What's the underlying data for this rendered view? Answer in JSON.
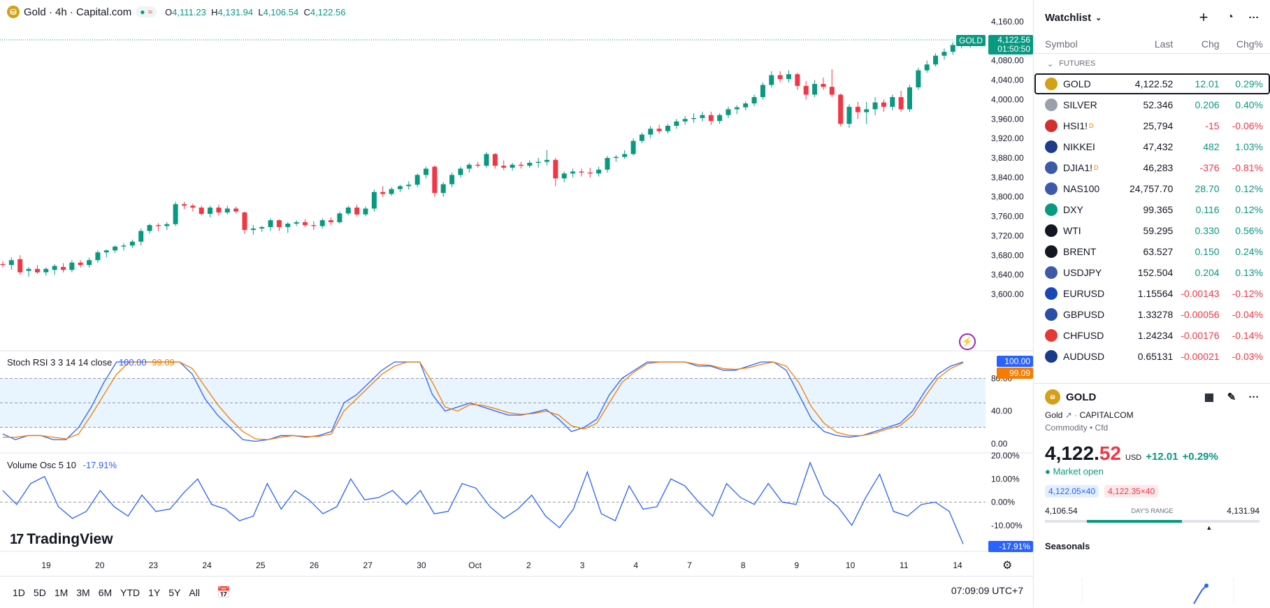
{
  "header": {
    "symbol_title": "Gold · 4h · Capital.com",
    "ohlc": {
      "o_label": "O",
      "o": "4,111.23",
      "h_label": "H",
      "h": "4,131.94",
      "l_label": "L",
      "l": "4,106.54",
      "c_label": "C",
      "c": "4,122.56"
    }
  },
  "price_axis": {
    "ticks": [
      "4,160.00",
      "4,120.00",
      "4,080.00",
      "4,040.00",
      "4,000.00",
      "3,960.00",
      "3,920.00",
      "3,880.00",
      "3,840.00",
      "3,800.00",
      "3,760.00",
      "3,720.00",
      "3,680.00",
      "3,640.00",
      "3,600.00"
    ],
    "last_symbol": "GOLD",
    "last_price": "4,122.56",
    "countdown": "01:50:50"
  },
  "time_axis": {
    "labels": [
      "19",
      "20",
      "23",
      "24",
      "25",
      "26",
      "27",
      "30",
      "Oct",
      "2",
      "3",
      "4",
      "7",
      "8",
      "9",
      "10",
      "11",
      "14"
    ]
  },
  "rsi_pane": {
    "label": "Stoch RSI 3 3 14 14 close",
    "k_value": "100.00",
    "d_value": "99.09",
    "ticks": [
      "80.00",
      "40.00",
      "0.00"
    ],
    "k_color": "#2962ff",
    "d_color": "#f57c00"
  },
  "vol_pane": {
    "label": "Volume Osc 5 10",
    "value": "-17.91%",
    "ticks": [
      "20.00%",
      "10.00%",
      "0.00%",
      "-10.00%"
    ],
    "tag": "-17.91%"
  },
  "branding": {
    "logo_text": "TradingView"
  },
  "bottom_bar": {
    "ranges": [
      "1D",
      "5D",
      "1M",
      "3M",
      "6M",
      "YTD",
      "1Y",
      "5Y",
      "All"
    ],
    "clock": "07:09:09 UTC+7"
  },
  "watchlist": {
    "title": "Watchlist",
    "columns": {
      "symbol": "Symbol",
      "last": "Last",
      "chg": "Chg",
      "pct": "Chg%"
    },
    "section": "FUTURES",
    "rows": [
      {
        "sym": "GOLD",
        "last": "4,122.52",
        "chg": "12.01",
        "pct": "0.29%",
        "dir": "pos",
        "icon_color": "#d4a017",
        "icon_name": "gold-icon"
      },
      {
        "sym": "SILVER",
        "last": "52.346",
        "chg": "0.206",
        "pct": "0.40%",
        "dir": "pos",
        "icon_color": "#9aa0aa",
        "icon_name": "silver-icon"
      },
      {
        "sym": "HSI1!",
        "last": "25,794",
        "chg": "-15",
        "pct": "-0.06%",
        "dir": "neg",
        "icon_color": "#d32f2f",
        "icon_name": "hsi-icon",
        "sup": "D"
      },
      {
        "sym": "NIKKEI",
        "last": "47,432",
        "chg": "482",
        "pct": "1.03%",
        "dir": "pos",
        "icon_color": "#1e3a8a",
        "icon_name": "nikkei-icon"
      },
      {
        "sym": "DJIA1!",
        "last": "46,283",
        "chg": "-376",
        "pct": "-0.81%",
        "dir": "neg",
        "icon_color": "#3c5aa8",
        "icon_name": "us-flag-icon",
        "sup": "D"
      },
      {
        "sym": "NAS100",
        "last": "24,757.70",
        "chg": "28.70",
        "pct": "0.12%",
        "dir": "pos",
        "icon_color": "#3c5aa8",
        "icon_name": "us-flag-icon"
      },
      {
        "sym": "DXY",
        "last": "99.365",
        "chg": "0.116",
        "pct": "0.12%",
        "dir": "pos",
        "icon_color": "#089981",
        "icon_name": "dollar-icon"
      },
      {
        "sym": "WTI",
        "last": "59.295",
        "chg": "0.330",
        "pct": "0.56%",
        "dir": "pos",
        "icon_color": "#131722",
        "icon_name": "oil-drop-icon"
      },
      {
        "sym": "BRENT",
        "last": "63.527",
        "chg": "0.150",
        "pct": "0.24%",
        "dir": "pos",
        "icon_color": "#131722",
        "icon_name": "oil-drop-icon"
      },
      {
        "sym": "USDJPY",
        "last": "152.504",
        "chg": "0.204",
        "pct": "0.13%",
        "dir": "pos",
        "icon_color": "#3c5aa8",
        "icon_name": "usdjpy-flag-icon"
      },
      {
        "sym": "EURUSD",
        "last": "1.15564",
        "chg": "-0.00143",
        "pct": "-0.12%",
        "dir": "neg",
        "icon_color": "#1a47b8",
        "icon_name": "eurusd-flag-icon"
      },
      {
        "sym": "GBPUSD",
        "last": "1.33278",
        "chg": "-0.00056",
        "pct": "-0.04%",
        "dir": "neg",
        "icon_color": "#2b4ea8",
        "icon_name": "gbpusd-flag-icon"
      },
      {
        "sym": "CHFUSD",
        "last": "1.24234",
        "chg": "-0.00176",
        "pct": "-0.14%",
        "dir": "neg",
        "icon_color": "#e53935",
        "icon_name": "chfusd-flag-icon"
      },
      {
        "sym": "AUDUSD",
        "last": "0.65131",
        "chg": "-0.00021",
        "pct": "-0.03%",
        "dir": "neg",
        "icon_color": "#1a3a8a",
        "icon_name": "audusd-flag-icon"
      }
    ]
  },
  "detail": {
    "symbol": "GOLD",
    "name": "Gold",
    "exchange": "CAPITALCOM",
    "category": "Commodity • Cfd",
    "price_main": "4,122.",
    "price_frac": "52",
    "currency": "USD",
    "change": "+12.01",
    "change_pct": "+0.29%",
    "market_status": "Market open",
    "bid": "4,122.05×40",
    "ask": "4,122.35×40",
    "day_low": "4,106.54",
    "day_high": "4,131.94",
    "range_label": "DAY'S RANGE",
    "day_range_position": 0.9,
    "seasonals": "Seasonals"
  },
  "chart_data": {
    "type": "candlestick",
    "interval": "4h",
    "ylim": [
      3590,
      4170
    ],
    "ohlc": [
      [
        3662,
        3668,
        3655,
        3660
      ],
      [
        3660,
        3676,
        3650,
        3670
      ],
      [
        3672,
        3680,
        3640,
        3645
      ],
      [
        3648,
        3656,
        3636,
        3652
      ],
      [
        3652,
        3660,
        3642,
        3645
      ],
      [
        3645,
        3655,
        3638,
        3652
      ],
      [
        3650,
        3662,
        3640,
        3658
      ],
      [
        3656,
        3664,
        3645,
        3650
      ],
      [
        3650,
        3670,
        3645,
        3665
      ],
      [
        3665,
        3670,
        3655,
        3660
      ],
      [
        3660,
        3675,
        3655,
        3670
      ],
      [
        3670,
        3690,
        3665,
        3686
      ],
      [
        3686,
        3692,
        3676,
        3690
      ],
      [
        3690,
        3700,
        3685,
        3698
      ],
      [
        3698,
        3705,
        3690,
        3700
      ],
      [
        3700,
        3712,
        3695,
        3708
      ],
      [
        3708,
        3735,
        3700,
        3730
      ],
      [
        3730,
        3745,
        3725,
        3742
      ],
      [
        3742,
        3746,
        3730,
        3740
      ],
      [
        3740,
        3748,
        3732,
        3744
      ],
      [
        3744,
        3790,
        3740,
        3785
      ],
      [
        3785,
        3790,
        3775,
        3782
      ],
      [
        3782,
        3786,
        3770,
        3778
      ],
      [
        3778,
        3782,
        3762,
        3765
      ],
      [
        3765,
        3782,
        3758,
        3778
      ],
      [
        3778,
        3784,
        3762,
        3768
      ],
      [
        3768,
        3782,
        3764,
        3776
      ],
      [
        3776,
        3780,
        3766,
        3770
      ],
      [
        3768,
        3770,
        3724,
        3732
      ],
      [
        3732,
        3742,
        3722,
        3735
      ],
      [
        3735,
        3740,
        3728,
        3738
      ],
      [
        3738,
        3756,
        3730,
        3752
      ],
      [
        3752,
        3754,
        3730,
        3738
      ],
      [
        3738,
        3748,
        3726,
        3745
      ],
      [
        3745,
        3752,
        3740,
        3748
      ],
      [
        3748,
        3754,
        3738,
        3742
      ],
      [
        3742,
        3750,
        3732,
        3740
      ],
      [
        3740,
        3756,
        3735,
        3752
      ],
      [
        3752,
        3758,
        3742,
        3748
      ],
      [
        3748,
        3770,
        3745,
        3766
      ],
      [
        3766,
        3782,
        3762,
        3778
      ],
      [
        3778,
        3784,
        3760,
        3764
      ],
      [
        3764,
        3780,
        3760,
        3776
      ],
      [
        3776,
        3815,
        3770,
        3810
      ],
      [
        3810,
        3822,
        3800,
        3806
      ],
      [
        3806,
        3820,
        3802,
        3816
      ],
      [
        3816,
        3825,
        3810,
        3822
      ],
      [
        3822,
        3832,
        3815,
        3825
      ],
      [
        3825,
        3848,
        3820,
        3845
      ],
      [
        3845,
        3862,
        3838,
        3858
      ],
      [
        3862,
        3865,
        3800,
        3808
      ],
      [
        3808,
        3830,
        3800,
        3826
      ],
      [
        3826,
        3850,
        3820,
        3845
      ],
      [
        3845,
        3862,
        3840,
        3858
      ],
      [
        3858,
        3870,
        3850,
        3866
      ],
      [
        3866,
        3872,
        3860,
        3864
      ],
      [
        3864,
        3892,
        3860,
        3888
      ],
      [
        3888,
        3890,
        3858,
        3864
      ],
      [
        3864,
        3875,
        3855,
        3860
      ],
      [
        3860,
        3870,
        3854,
        3866
      ],
      [
        3866,
        3872,
        3858,
        3864
      ],
      [
        3864,
        3875,
        3860,
        3870
      ],
      [
        3870,
        3880,
        3860,
        3872
      ],
      [
        3872,
        3896,
        3865,
        3876
      ],
      [
        3876,
        3880,
        3822,
        3838
      ],
      [
        3838,
        3852,
        3830,
        3848
      ],
      [
        3848,
        3858,
        3840,
        3852
      ],
      [
        3852,
        3858,
        3842,
        3850
      ],
      [
        3850,
        3860,
        3840,
        3848
      ],
      [
        3848,
        3862,
        3842,
        3856
      ],
      [
        3856,
        3884,
        3850,
        3880
      ],
      [
        3880,
        3886,
        3872,
        3882
      ],
      [
        3882,
        3896,
        3878,
        3888
      ],
      [
        3888,
        3920,
        3885,
        3915
      ],
      [
        3915,
        3932,
        3910,
        3928
      ],
      [
        3928,
        3946,
        3920,
        3940
      ],
      [
        3940,
        3948,
        3930,
        3935
      ],
      [
        3935,
        3950,
        3930,
        3946
      ],
      [
        3946,
        3960,
        3940,
        3955
      ],
      [
        3955,
        3966,
        3948,
        3960
      ],
      [
        3960,
        3972,
        3952,
        3962
      ],
      [
        3962,
        3975,
        3955,
        3968
      ],
      [
        3968,
        3975,
        3948,
        3956
      ],
      [
        3956,
        3972,
        3950,
        3968
      ],
      [
        3968,
        3985,
        3962,
        3980
      ],
      [
        3980,
        3988,
        3970,
        3984
      ],
      [
        3984,
        3996,
        3978,
        3992
      ],
      [
        3992,
        4010,
        3986,
        4005
      ],
      [
        4005,
        4035,
        4000,
        4030
      ],
      [
        4030,
        4058,
        4025,
        4050
      ],
      [
        4050,
        4058,
        4035,
        4042
      ],
      [
        4042,
        4060,
        4035,
        4052
      ],
      [
        4052,
        4055,
        4020,
        4028
      ],
      [
        4028,
        4038,
        4000,
        4010
      ],
      [
        4010,
        4040,
        4005,
        4032
      ],
      [
        4032,
        4045,
        4020,
        4026
      ],
      [
        4026,
        4062,
        4005,
        4010
      ],
      [
        4010,
        4012,
        3945,
        3950
      ],
      [
        3950,
        3990,
        3942,
        3985
      ],
      [
        3985,
        3995,
        3960,
        3974
      ],
      [
        3974,
        3995,
        3950,
        3980
      ],
      [
        3980,
        4005,
        3968,
        3994
      ],
      [
        3994,
        4000,
        3975,
        3985
      ],
      [
        3985,
        4010,
        3978,
        4005
      ],
      [
        4005,
        4018,
        3975,
        3980
      ],
      [
        3980,
        4030,
        3975,
        4025
      ],
      [
        4025,
        4065,
        4020,
        4060
      ],
      [
        4060,
        4080,
        4055,
        4072
      ],
      [
        4072,
        4095,
        4068,
        4090
      ],
      [
        4090,
        4105,
        4082,
        4098
      ],
      [
        4098,
        4118,
        4092,
        4112
      ],
      [
        4112,
        4128,
        4105,
        4118
      ],
      [
        4111.23,
        4131.94,
        4106.54,
        4122.56
      ]
    ]
  },
  "rsi_data": {
    "ylim": [
      0,
      100
    ],
    "k": [
      12,
      5,
      10,
      10,
      5,
      5,
      20,
      45,
      75,
      100,
      100,
      100,
      100,
      100,
      100,
      85,
      55,
      35,
      20,
      5,
      3,
      5,
      10,
      10,
      8,
      10,
      15,
      50,
      60,
      75,
      90,
      100,
      100,
      100,
      60,
      40,
      45,
      50,
      45,
      40,
      35,
      35,
      38,
      42,
      30,
      15,
      20,
      30,
      60,
      80,
      90,
      100,
      100,
      100,
      100,
      95,
      95,
      90,
      90,
      95,
      100,
      100,
      90,
      60,
      30,
      15,
      10,
      8,
      10,
      15,
      20,
      25,
      40,
      65,
      85,
      95,
      100
    ],
    "d": [
      8,
      8,
      10,
      10,
      8,
      6,
      12,
      35,
      60,
      85,
      100,
      100,
      100,
      100,
      100,
      92,
      70,
      48,
      30,
      15,
      6,
      5,
      8,
      10,
      9,
      9,
      12,
      40,
      55,
      70,
      85,
      95,
      100,
      100,
      75,
      45,
      40,
      48,
      47,
      43,
      38,
      36,
      37,
      40,
      35,
      22,
      18,
      25,
      50,
      75,
      88,
      98,
      100,
      100,
      100,
      97,
      96,
      92,
      91,
      93,
      97,
      100,
      95,
      75,
      45,
      25,
      14,
      10,
      10,
      13,
      18,
      22,
      35,
      58,
      80,
      92,
      99
    ]
  },
  "vol_data": {
    "ylim": [
      -20,
      20
    ],
    "values": [
      5,
      -1,
      8,
      11,
      -2,
      -7,
      -4,
      5,
      -2,
      -6,
      3,
      -4,
      -3,
      4,
      10,
      -1,
      -3,
      -8,
      -6,
      8,
      -3,
      5,
      1,
      -5,
      -2,
      10,
      1,
      2,
      5,
      -1,
      5,
      -5,
      -4,
      8,
      6,
      -2,
      -7,
      -3,
      3,
      -6,
      -11,
      -3,
      13,
      -5,
      -8,
      7,
      -3,
      -2,
      10,
      7,
      0,
      -6,
      8,
      2,
      -1,
      8,
      0,
      -1,
      17,
      3,
      -2,
      -10,
      2,
      12,
      -4,
      -6,
      -1,
      0,
      -4,
      -18
    ],
    "color": "#2962ff"
  }
}
